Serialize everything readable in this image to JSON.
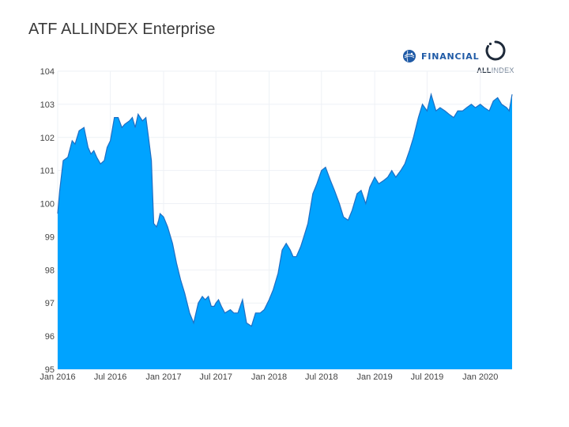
{
  "title": "ATF ALLINDEX Enterprise",
  "logos": {
    "financial": "FINANCIAL",
    "allindex_bold": "ALL",
    "allindex_rest": "INDEX"
  },
  "colors": {
    "area_fill": "#00a3ff",
    "area_line": "#1f6fc4",
    "grid": "#eef1f6",
    "title": "#3a3a3a",
    "brand_blue": "#1f5aa6"
  },
  "chart_data": {
    "type": "area",
    "title": "ATF ALLINDEX Enterprise",
    "xlabel": "",
    "ylabel": "",
    "xlim": [
      "2016-01-01",
      "2020-04-20"
    ],
    "ylim": [
      95,
      104
    ],
    "y_ticks": [
      95,
      96,
      97,
      98,
      99,
      100,
      101,
      102,
      103,
      104
    ],
    "x_ticks": [
      {
        "date": "2016-01-01",
        "label": "Jan 2016"
      },
      {
        "date": "2016-07-01",
        "label": "Jul 2016"
      },
      {
        "date": "2017-01-01",
        "label": "Jan 2017"
      },
      {
        "date": "2017-07-01",
        "label": "Jul 2017"
      },
      {
        "date": "2018-01-01",
        "label": "Jan 2018"
      },
      {
        "date": "2018-07-01",
        "label": "Jul 2018"
      },
      {
        "date": "2019-01-01",
        "label": "Jan 2019"
      },
      {
        "date": "2019-07-01",
        "label": "Jul 2019"
      },
      {
        "date": "2020-01-01",
        "label": "Jan 2020"
      }
    ],
    "grid": true,
    "series": [
      {
        "x": [
          "2016-01-01",
          "2016-01-08",
          "2016-01-20",
          "2016-02-05",
          "2016-02-20",
          "2016-03-01",
          "2016-03-15",
          "2016-04-01",
          "2016-04-15",
          "2016-04-25",
          "2016-05-05",
          "2016-05-15",
          "2016-05-28",
          "2016-06-10",
          "2016-06-20",
          "2016-07-01",
          "2016-07-15",
          "2016-07-28",
          "2016-08-10",
          "2016-08-20",
          "2016-09-05",
          "2016-09-15",
          "2016-09-25",
          "2016-10-05",
          "2016-10-20",
          "2016-11-01",
          "2016-11-10",
          "2016-11-20",
          "2016-11-28",
          "2016-12-08",
          "2016-12-15",
          "2016-12-20",
          "2017-01-01",
          "2017-01-15",
          "2017-02-01",
          "2017-02-15",
          "2017-03-01",
          "2017-03-15",
          "2017-04-01",
          "2017-04-15",
          "2017-05-01",
          "2017-05-15",
          "2017-05-25",
          "2017-06-05",
          "2017-06-15",
          "2017-06-25",
          "2017-07-01",
          "2017-07-10",
          "2017-07-20",
          "2017-08-01",
          "2017-08-20",
          "2017-09-01",
          "2017-09-15",
          "2017-10-01",
          "2017-10-15",
          "2017-11-01",
          "2017-11-15",
          "2017-12-01",
          "2017-12-15",
          "2018-01-01",
          "2018-01-15",
          "2018-02-01",
          "2018-02-15",
          "2018-03-01",
          "2018-03-15",
          "2018-03-25",
          "2018-04-05",
          "2018-04-20",
          "2018-05-01",
          "2018-05-15",
          "2018-06-01",
          "2018-06-15",
          "2018-07-01",
          "2018-07-15",
          "2018-08-01",
          "2018-08-15",
          "2018-09-01",
          "2018-09-15",
          "2018-10-01",
          "2018-10-15",
          "2018-11-01",
          "2018-11-15",
          "2018-12-01",
          "2018-12-15",
          "2019-01-01",
          "2019-01-15",
          "2019-02-01",
          "2019-02-15",
          "2019-03-01",
          "2019-03-15",
          "2019-04-01",
          "2019-04-15",
          "2019-05-01",
          "2019-05-15",
          "2019-06-01",
          "2019-06-15",
          "2019-07-01",
          "2019-07-15",
          "2019-08-01",
          "2019-08-15",
          "2019-09-01",
          "2019-09-15",
          "2019-10-01",
          "2019-10-15",
          "2019-11-01",
          "2019-11-15",
          "2019-12-01",
          "2019-12-15",
          "2020-01-01",
          "2020-01-15",
          "2020-02-01",
          "2020-02-15",
          "2020-03-01",
          "2020-03-15",
          "2020-04-01",
          "2020-04-10",
          "2020-04-20"
        ],
        "y": [
          99.7,
          100.4,
          101.3,
          101.4,
          101.9,
          101.8,
          102.2,
          102.3,
          101.7,
          101.5,
          101.6,
          101.4,
          101.2,
          101.3,
          101.7,
          101.9,
          102.6,
          102.6,
          102.3,
          102.4,
          102.5,
          102.6,
          102.3,
          102.7,
          102.5,
          102.6,
          102.0,
          101.3,
          99.4,
          99.3,
          99.5,
          99.7,
          99.6,
          99.3,
          98.8,
          98.2,
          97.7,
          97.3,
          96.7,
          96.4,
          97.0,
          97.2,
          97.1,
          97.2,
          96.9,
          96.9,
          97.0,
          97.1,
          96.9,
          96.7,
          96.8,
          96.7,
          96.7,
          97.1,
          96.4,
          96.3,
          96.7,
          96.7,
          96.8,
          97.1,
          97.4,
          97.9,
          98.6,
          98.8,
          98.6,
          98.4,
          98.4,
          98.7,
          99.0,
          99.4,
          100.3,
          100.6,
          101.0,
          101.1,
          100.7,
          100.4,
          100.0,
          99.6,
          99.5,
          99.8,
          100.3,
          100.4,
          100.0,
          100.5,
          100.8,
          100.6,
          100.7,
          100.8,
          101.0,
          100.8,
          101.0,
          101.2,
          101.6,
          102.0,
          102.6,
          103.0,
          102.8,
          103.3,
          102.8,
          102.9,
          102.8,
          102.7,
          102.6,
          102.8,
          102.8,
          102.9,
          103.0,
          102.9,
          103.0,
          102.9,
          102.8,
          103.1,
          103.2,
          103.0,
          102.9,
          102.8,
          103.3
        ]
      }
    ]
  }
}
